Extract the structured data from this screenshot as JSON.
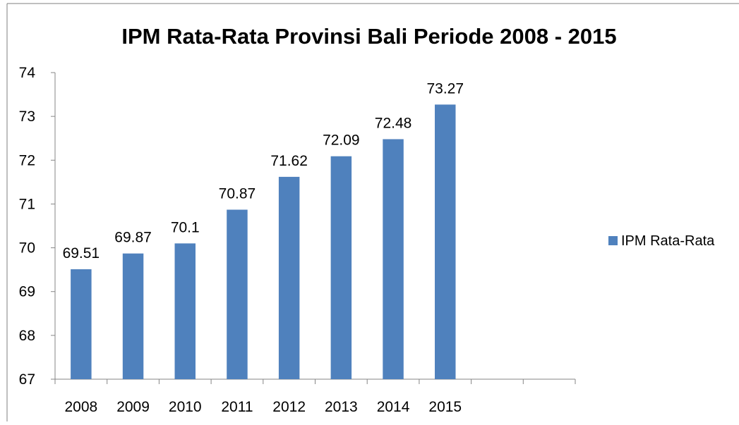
{
  "chart_data": {
    "type": "bar",
    "title": "IPM Rata-Rata Provinsi Bali Periode 2008 - 2015",
    "categories": [
      "2008",
      "2009",
      "2010",
      "2011",
      "2012",
      "2013",
      "2014",
      "2015",
      "",
      ""
    ],
    "series": [
      {
        "name": "IPM Rata-Rata",
        "color": "#4F81BD",
        "values": [
          69.51,
          69.87,
          70.1,
          70.87,
          71.62,
          72.09,
          72.48,
          73.27,
          null,
          null
        ],
        "value_labels": [
          "69.51",
          "69.87",
          "70.1",
          "70.87",
          "71.62",
          "72.09",
          "72.48",
          "73.27",
          "",
          ""
        ]
      }
    ],
    "ylim": [
      67,
      74
    ],
    "yticks": [
      "67",
      "68",
      "69",
      "70",
      "71",
      "72",
      "73",
      "74"
    ],
    "xlabel": "",
    "ylabel": "",
    "grid": false,
    "legend_position": "right"
  }
}
